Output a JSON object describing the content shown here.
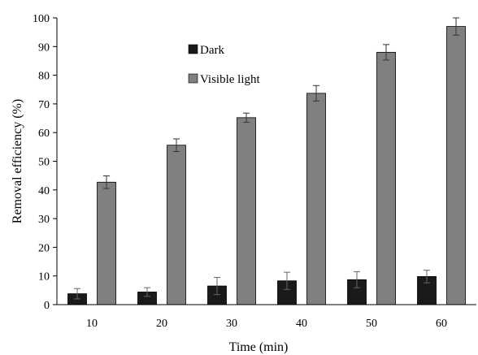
{
  "chart_data": {
    "type": "bar",
    "categories": [
      "10",
      "20",
      "30",
      "40",
      "50",
      "60"
    ],
    "series": [
      {
        "name": "Dark",
        "color": "#1a1a1a",
        "values": [
          3.8,
          4.4,
          6.5,
          8.3,
          8.7,
          9.8
        ],
        "errors": [
          1.8,
          1.5,
          3.0,
          3.0,
          2.8,
          2.2
        ]
      },
      {
        "name": "Visible light",
        "color": "#808080",
        "values": [
          42.7,
          55.6,
          65.2,
          73.7,
          88.0,
          97.0
        ],
        "errors": [
          2.2,
          2.2,
          1.6,
          2.7,
          2.7,
          3.0
        ]
      }
    ],
    "xlabel": "Time (min)",
    "ylabel": "Removal efficiency (%)",
    "ylim": [
      0,
      100
    ],
    "yticks": [
      "0",
      "10",
      "20",
      "30",
      "40",
      "50",
      "60",
      "70",
      "80",
      "90",
      "100"
    ],
    "legend_position": "top-left inside",
    "grid": false
  }
}
